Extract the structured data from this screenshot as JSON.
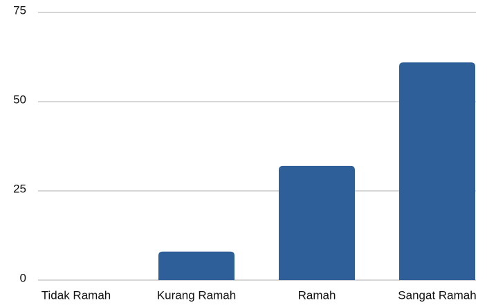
{
  "chart_data": {
    "type": "bar",
    "categories": [
      "Tidak Ramah",
      "Kurang Ramah",
      "Ramah",
      "Sangat Ramah"
    ],
    "values": [
      0,
      8,
      32,
      61
    ],
    "color": "#2f5f99",
    "ylim": [
      0,
      75
    ],
    "yticks": [
      0,
      25,
      50,
      75
    ],
    "grid": true
  }
}
